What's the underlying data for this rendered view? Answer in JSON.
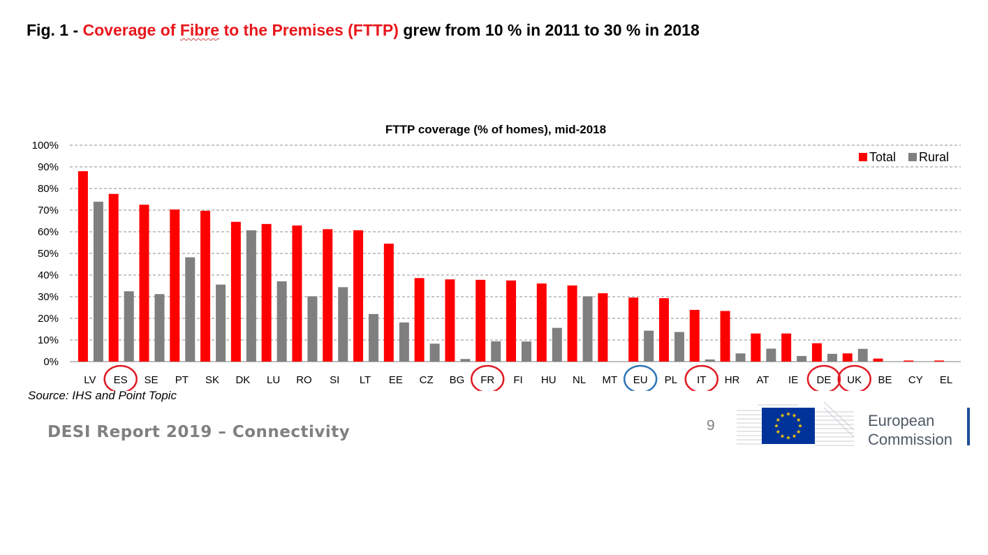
{
  "slide": {
    "title_prefix": "Fig. 1 - ",
    "title_red_1": "Coverage of ",
    "title_red_word": "Fibre",
    "title_red_2": " to the Premises (FTTP)",
    "title_suffix": " grew from 10 % in 2011 to 30 % in 2018",
    "source": "Source: IHS and Point Topic",
    "footer": "DESI Report 2019 – Connectivity",
    "page_number": "9",
    "logo_line1": "European",
    "logo_line2": "Commission"
  },
  "colors": {
    "total": "#ff0000",
    "rural": "#7f7f7f",
    "highlight_circle": "#e01b24",
    "eu_circle": "#2e75b6",
    "title_red": "#e8161b",
    "eu_blue": "#003399",
    "eu_gold": "#ffcc00"
  },
  "chart_data": {
    "type": "bar",
    "title": "FTTP coverage (% of homes), mid-2018",
    "ylim": [
      0,
      100
    ],
    "yticks": [
      "0%",
      "10%",
      "20%",
      "30%",
      "40%",
      "50%",
      "60%",
      "70%",
      "80%",
      "90%",
      "100%"
    ],
    "grid": true,
    "legend_position": "top-right",
    "categories": [
      "LV",
      "ES",
      "SE",
      "PT",
      "SK",
      "DK",
      "LU",
      "RO",
      "SI",
      "LT",
      "EE",
      "CZ",
      "BG",
      "FR",
      "FI",
      "HU",
      "NL",
      "MT",
      "EU",
      "PL",
      "IT",
      "HR",
      "AT",
      "IE",
      "DE",
      "UK",
      "BE",
      "CY",
      "EL"
    ],
    "highlighted_red": [
      "ES",
      "FR",
      "IT",
      "DE",
      "UK"
    ],
    "highlighted_blue": [
      "EU"
    ],
    "series": [
      {
        "name": "Total",
        "values": [
          88,
          77.5,
          72.5,
          70.3,
          69.7,
          64.6,
          63.6,
          62.9,
          61.2,
          60.7,
          54.5,
          38.6,
          38.0,
          37.8,
          37.5,
          36.1,
          35.2,
          31.6,
          29.6,
          29.3,
          23.9,
          23.4,
          13.0,
          13.0,
          8.5,
          3.8,
          1.4,
          0.5,
          0.5
        ]
      },
      {
        "name": "Rural",
        "values": [
          73.9,
          32.5,
          31.2,
          48.2,
          35.6,
          60.7,
          37.1,
          30.2,
          34.4,
          22.0,
          18.1,
          8.3,
          1.2,
          9.4,
          9.3,
          15.6,
          30.2,
          0,
          14.3,
          13.7,
          1.0,
          3.8,
          6.0,
          2.6,
          3.6,
          5.9,
          0,
          0,
          0
        ]
      }
    ]
  }
}
